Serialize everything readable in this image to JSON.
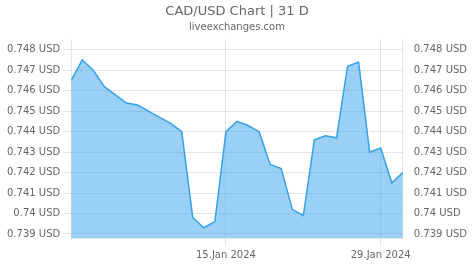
{
  "chart_data": {
    "type": "area",
    "title": "CAD/USD Chart | 31 D",
    "subtitle": "liveexchanges.com",
    "x": [
      0,
      1,
      2,
      3,
      4,
      5,
      6,
      7,
      8,
      9,
      10,
      11,
      12,
      13,
      14,
      15,
      16,
      17,
      18,
      19,
      20,
      21,
      22,
      23,
      24,
      25,
      26,
      27,
      28,
      29,
      30
    ],
    "values": [
      0.7465,
      0.7475,
      0.747,
      0.7462,
      0.7458,
      0.7454,
      0.7453,
      0.745,
      0.7447,
      0.7444,
      0.744,
      0.7398,
      0.7393,
      0.7396,
      0.744,
      0.7445,
      0.7443,
      0.744,
      0.7424,
      0.7422,
      0.7402,
      0.7399,
      0.7436,
      0.7438,
      0.7437,
      0.7472,
      0.7474,
      0.743,
      0.7432,
      0.7415,
      0.742
    ],
    "xlim": [
      0,
      30
    ],
    "xticks": [
      {
        "value": 14,
        "label": "15.Jan 2024"
      },
      {
        "value": 28,
        "label": "29.Jan 2024"
      }
    ],
    "ylim": [
      0.7388,
      0.7485
    ],
    "yticks": [
      {
        "value": 0.739,
        "label": "0.739 USD"
      },
      {
        "value": 0.74,
        "label": "0.74 USD"
      },
      {
        "value": 0.741,
        "label": "0.741 USD"
      },
      {
        "value": 0.742,
        "label": "0.742 USD"
      },
      {
        "value": 0.743,
        "label": "0.743 USD"
      },
      {
        "value": 0.744,
        "label": "0.744 USD"
      },
      {
        "value": 0.745,
        "label": "0.745 USD"
      },
      {
        "value": 0.746,
        "label": "0.746 USD"
      },
      {
        "value": 0.747,
        "label": "0.747 USD"
      },
      {
        "value": 0.748,
        "label": "0.748 USD"
      }
    ],
    "y2lim": [
      0.7388,
      0.7485
    ],
    "y2ticks": [
      {
        "value": 0.739,
        "label": "0.739 USD"
      },
      {
        "value": 0.74,
        "label": "0.74 USD"
      },
      {
        "value": 0.741,
        "label": "0.741 USD"
      },
      {
        "value": 0.742,
        "label": "0.742 USD"
      },
      {
        "value": 0.743,
        "label": "0.743 USD"
      },
      {
        "value": 0.744,
        "label": "0.744 USD"
      },
      {
        "value": 0.745,
        "label": "0.745 USD"
      },
      {
        "value": 0.746,
        "label": "0.746 USD"
      },
      {
        "value": 0.747,
        "label": "0.747 USD"
      },
      {
        "value": 0.748,
        "label": "0.748 USD"
      }
    ],
    "grid": true
  }
}
